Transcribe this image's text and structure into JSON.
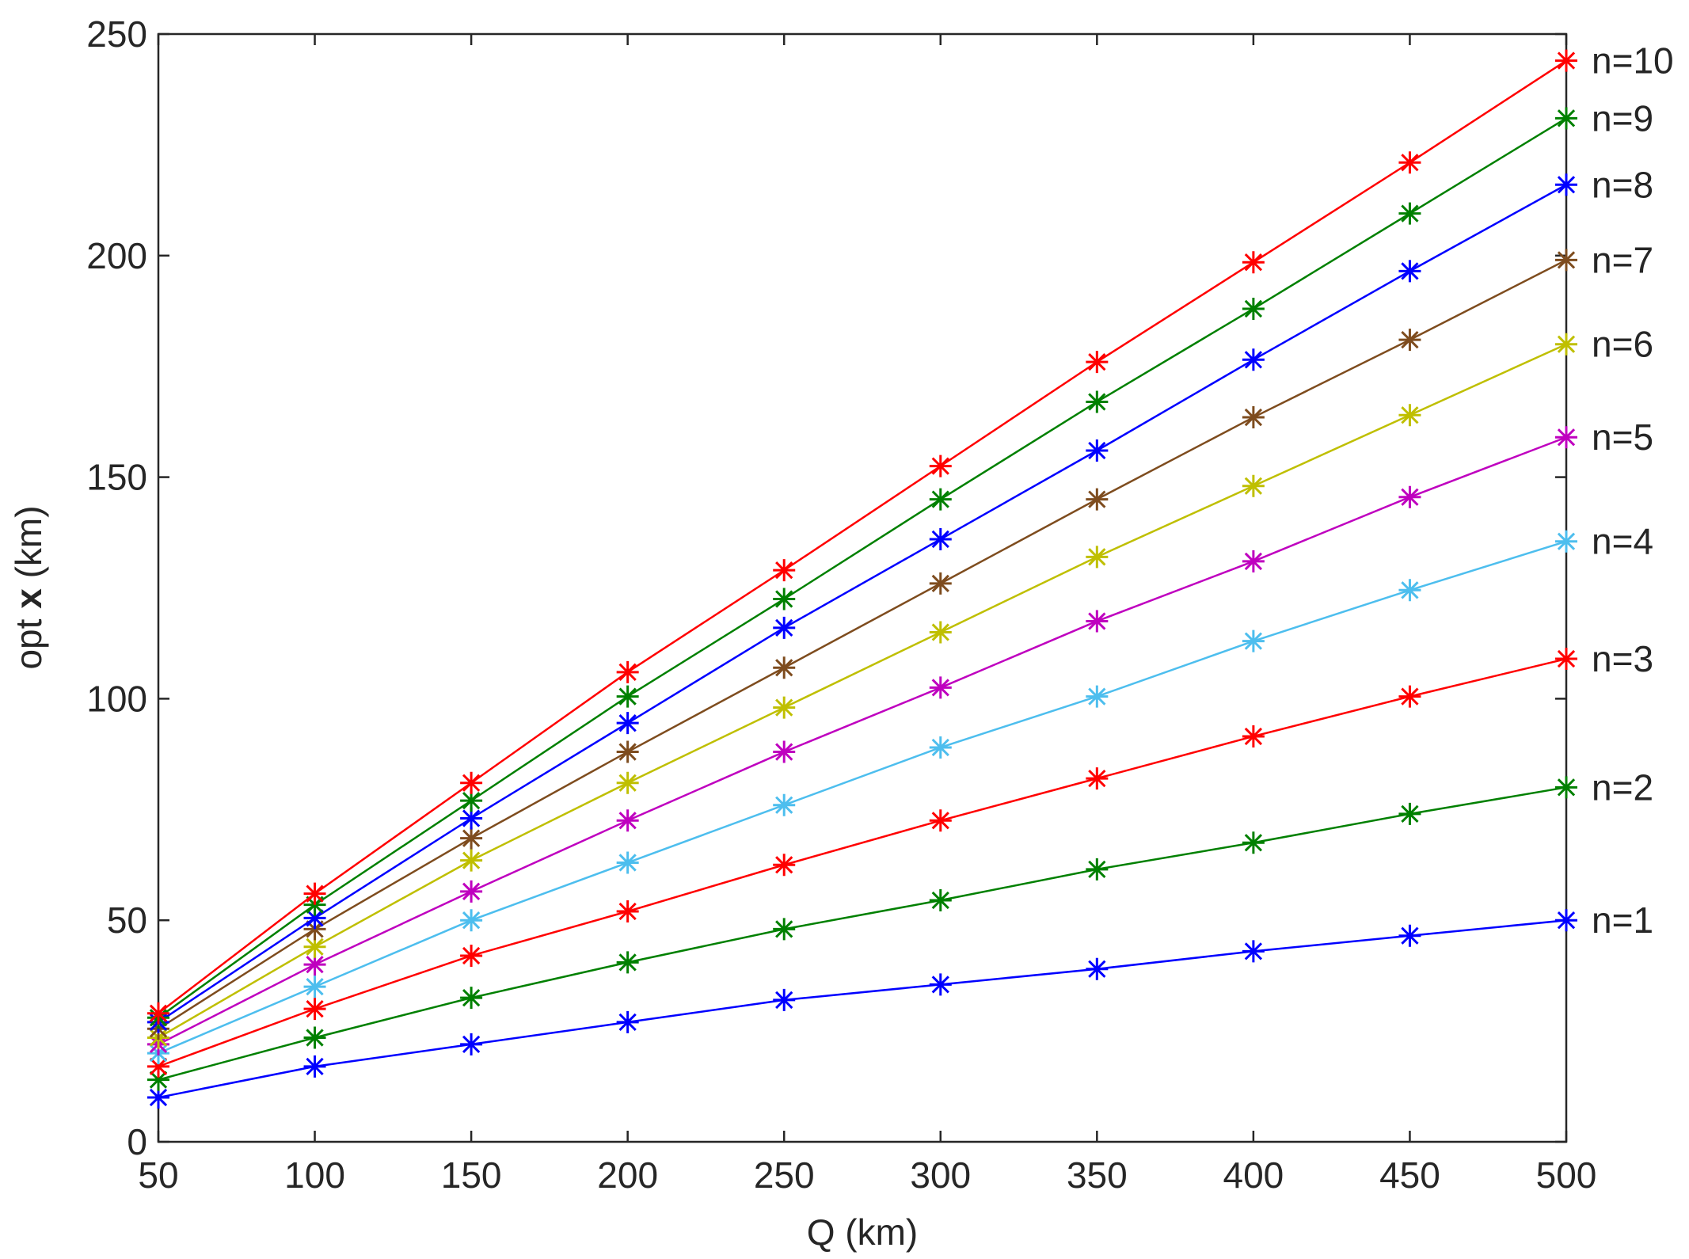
{
  "chart_data": {
    "type": "line",
    "xlabel": "Q (km)",
    "ylabel_prefix": "opt ",
    "ylabel_bold": "x",
    "ylabel_suffix": "  (km)",
    "xlim": [
      50,
      500
    ],
    "ylim": [
      0,
      250
    ],
    "xticks": [
      50,
      100,
      150,
      200,
      250,
      300,
      350,
      400,
      450,
      500
    ],
    "yticks": [
      0,
      50,
      100,
      150,
      200,
      250
    ],
    "grid": false,
    "marker": "asterisk",
    "x": [
      50,
      100,
      150,
      200,
      250,
      300,
      350,
      400,
      450,
      500
    ],
    "series": [
      {
        "name": "n=1",
        "color": "#0000ff",
        "values": [
          10,
          17,
          22,
          27,
          32,
          35.5,
          39,
          43,
          46.5,
          50
        ]
      },
      {
        "name": "n=2",
        "color": "#008000",
        "values": [
          14,
          23.5,
          32.5,
          40.5,
          48,
          54.5,
          61.5,
          67.5,
          74,
          80
        ]
      },
      {
        "name": "n=3",
        "color": "#ff0000",
        "values": [
          17,
          30,
          42,
          52,
          62.5,
          72.5,
          82,
          91.5,
          100.5,
          109
        ]
      },
      {
        "name": "n=4",
        "color": "#4dbeee",
        "values": [
          20,
          35,
          50,
          63,
          76,
          89,
          100.5,
          113,
          124.5,
          135.5
        ]
      },
      {
        "name": "n=5",
        "color": "#bf00bf",
        "values": [
          22,
          40,
          56.5,
          72.5,
          88,
          102.5,
          117.5,
          131,
          145.5,
          159
        ]
      },
      {
        "name": "n=6",
        "color": "#bfbf00",
        "values": [
          23.5,
          44,
          63.5,
          81,
          98,
          115,
          132,
          148,
          164,
          180
        ]
      },
      {
        "name": "n=7",
        "color": "#7e4c1e",
        "values": [
          25.5,
          48,
          68.5,
          88,
          107,
          126,
          145,
          163.5,
          181,
          199
        ]
      },
      {
        "name": "n=8",
        "color": "#0000ff",
        "values": [
          27,
          50.5,
          73,
          94.5,
          116,
          136,
          156,
          176.5,
          196.5,
          216
        ]
      },
      {
        "name": "n=9",
        "color": "#008000",
        "values": [
          28,
          53.5,
          77,
          100.5,
          122.5,
          145,
          167,
          188,
          209.5,
          231
        ]
      },
      {
        "name": "n=10",
        "color": "#ff0000",
        "values": [
          29,
          56,
          81,
          106,
          129,
          152.5,
          176,
          198.5,
          221,
          244
        ]
      }
    ]
  }
}
